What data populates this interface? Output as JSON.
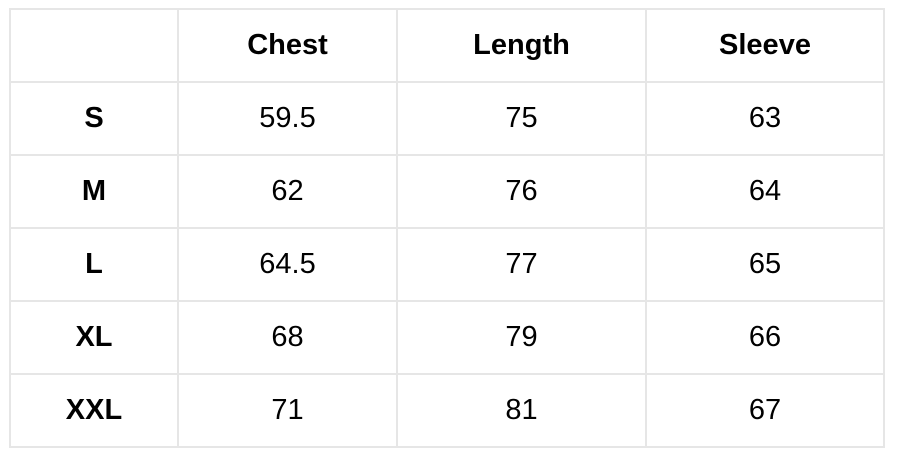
{
  "table": {
    "headers": [
      "",
      "Chest",
      "Length",
      "Sleeve"
    ],
    "rows": [
      [
        "S",
        "59.5",
        "75",
        "63"
      ],
      [
        "M",
        "62",
        "76",
        "64"
      ],
      [
        "L",
        "64.5",
        "77",
        "65"
      ],
      [
        "XL",
        "68",
        "79",
        "66"
      ],
      [
        "XXL",
        "71",
        "81",
        "67"
      ]
    ]
  }
}
